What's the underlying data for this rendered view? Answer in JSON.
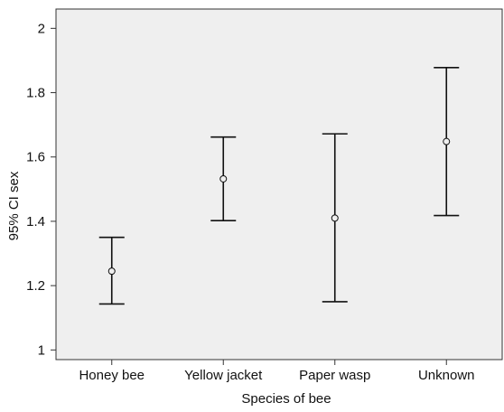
{
  "chart_data": {
    "type": "errorbar",
    "title": "",
    "xlabel": "Species of bee",
    "ylabel": "95% CI sex",
    "categories": [
      "Honey bee",
      "Yellow jacket",
      "Paper wasp",
      "Unknown"
    ],
    "mean": [
      1.245,
      1.532,
      1.41,
      1.648
    ],
    "lower": [
      1.143,
      1.402,
      1.15,
      1.418
    ],
    "upper": [
      1.35,
      1.662,
      1.672,
      1.878
    ],
    "ylim": [
      0.97,
      2.06
    ],
    "yticks": [
      1,
      1.2,
      1.4,
      1.6,
      1.8,
      2
    ],
    "ytick_labels": [
      "1",
      "1.2",
      "1.4",
      "1.6",
      "1.8",
      "2"
    ],
    "grid": false,
    "colors": {
      "plot_background": "#efefef",
      "errorbar": "#111111",
      "axis": "#333333"
    }
  }
}
